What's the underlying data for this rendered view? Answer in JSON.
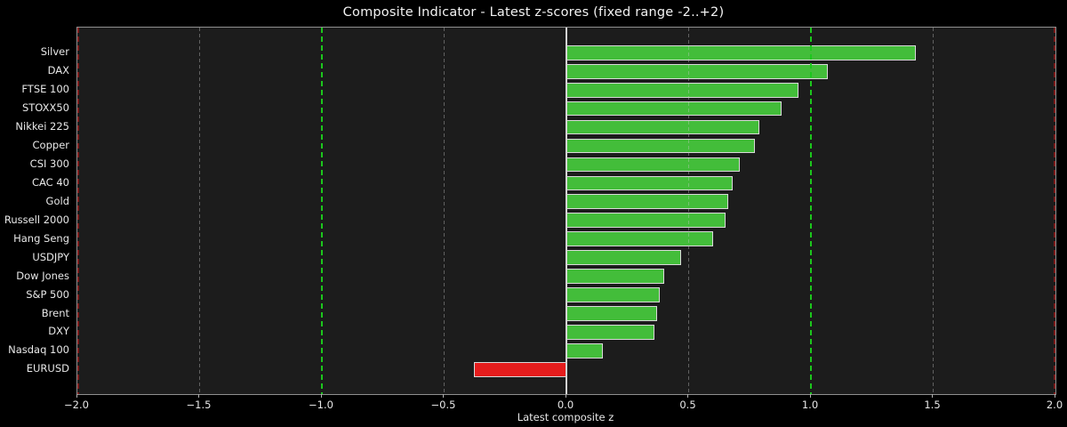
{
  "title": "Composite Indicator - Latest z-scores (fixed range -2..+2)",
  "chart_data": {
    "type": "bar",
    "orientation": "horizontal",
    "title": "Composite Indicator - Latest z-scores (fixed range -2..+2)",
    "xlabel": "Latest composite z",
    "ylabel": "",
    "xlim": [
      -2,
      2
    ],
    "categories": [
      "Silver",
      "DAX",
      "FTSE 100",
      "STOXX50",
      "Nikkei 225",
      "Copper",
      "CSI 300",
      "CAC 40",
      "Gold",
      "Russell 2000",
      "Hang Seng",
      "USDJPY",
      "Dow Jones",
      "S&P 500",
      "Brent",
      "DXY",
      "Nasdaq 100",
      "EURUSD"
    ],
    "values": [
      1.43,
      1.07,
      0.95,
      0.88,
      0.79,
      0.77,
      0.71,
      0.68,
      0.66,
      0.65,
      0.6,
      0.47,
      0.4,
      0.38,
      0.37,
      0.36,
      0.15,
      -0.38
    ],
    "xticks": [
      -2.0,
      -1.5,
      -1.0,
      -0.5,
      0.0,
      0.5,
      1.0,
      1.5,
      2.0
    ],
    "xtick_labels": [
      "−2.0",
      "−1.5",
      "−1.0",
      "−0.5",
      "0.0",
      "0.5",
      "1.0",
      "1.5",
      "2.0"
    ],
    "gridlines": [
      -1.5,
      -0.5,
      0.5,
      1.5
    ],
    "reference_lines": [
      {
        "x": -2.0,
        "kind": "range"
      },
      {
        "x": 2.0,
        "kind": "range"
      },
      {
        "x": -1.0,
        "kind": "threshold"
      },
      {
        "x": 1.0,
        "kind": "threshold"
      },
      {
        "x": 0.0,
        "kind": "zero"
      }
    ],
    "legend": null,
    "grid": true,
    "colors": {
      "figure_background": "#000000",
      "plot_background": "#1c1c1c",
      "positive_bar": "#43bd3a",
      "negative_bar": "#e51c1c",
      "bar_edge": "#d9d9d9",
      "gridline": "rgba(200,200,200,0.40)",
      "threshold_line": "#1cc71c",
      "range_line": "#7c1b1b",
      "zero_line": "#d4d4d4",
      "text": "#e8e8e8"
    }
  }
}
